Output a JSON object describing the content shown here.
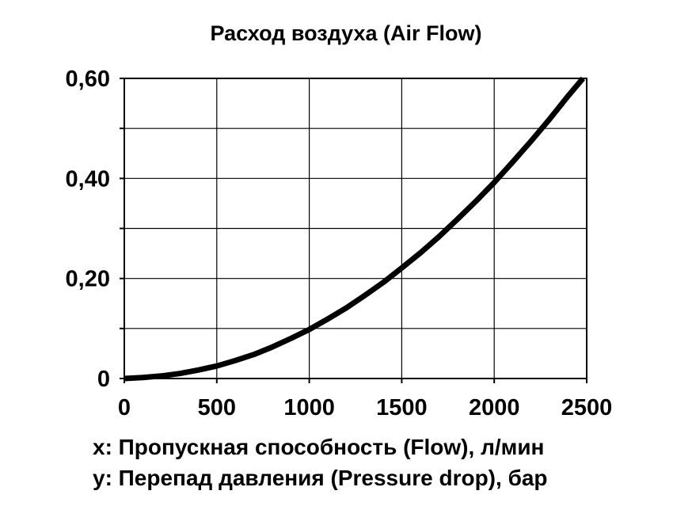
{
  "chart_data": {
    "type": "line",
    "title": "Расход воздуха (Air Flow)",
    "xlabel": "x: Пропускная способность (Flow), л/мин",
    "ylabel": "y: Перепад давления (Pressure drop), бар",
    "xlim": [
      0,
      2500
    ],
    "ylim": [
      0,
      0.6
    ],
    "x_ticks": [
      0,
      500,
      1000,
      1500,
      2000,
      2500
    ],
    "x_tick_labels": [
      "0",
      "500",
      "1000",
      "1500",
      "2000",
      "2500"
    ],
    "y_ticks": [
      0,
      0.2,
      0.4,
      0.6
    ],
    "y_tick_labels": [
      "0",
      "0,20",
      "0,40",
      "0,60"
    ],
    "x_grid": [
      500,
      1000,
      1500,
      2000,
      2500
    ],
    "y_grid": [
      0.1,
      0.2,
      0.3,
      0.4,
      0.5,
      0.6
    ],
    "grid": true,
    "series": [
      {
        "color": "#000000",
        "x": [
          0,
          100,
          200,
          300,
          400,
          500,
          600,
          700,
          800,
          900,
          1000,
          1100,
          1200,
          1300,
          1400,
          1500,
          1600,
          1700,
          1800,
          1900,
          2000,
          2100,
          2200,
          2300,
          2400,
          2480
        ],
        "y": [
          0.0,
          0.002,
          0.005,
          0.01,
          0.017,
          0.025,
          0.036,
          0.048,
          0.063,
          0.08,
          0.098,
          0.119,
          0.141,
          0.166,
          0.192,
          0.221,
          0.251,
          0.283,
          0.318,
          0.354,
          0.392,
          0.433,
          0.475,
          0.519,
          0.565,
          0.6
        ]
      }
    ]
  }
}
